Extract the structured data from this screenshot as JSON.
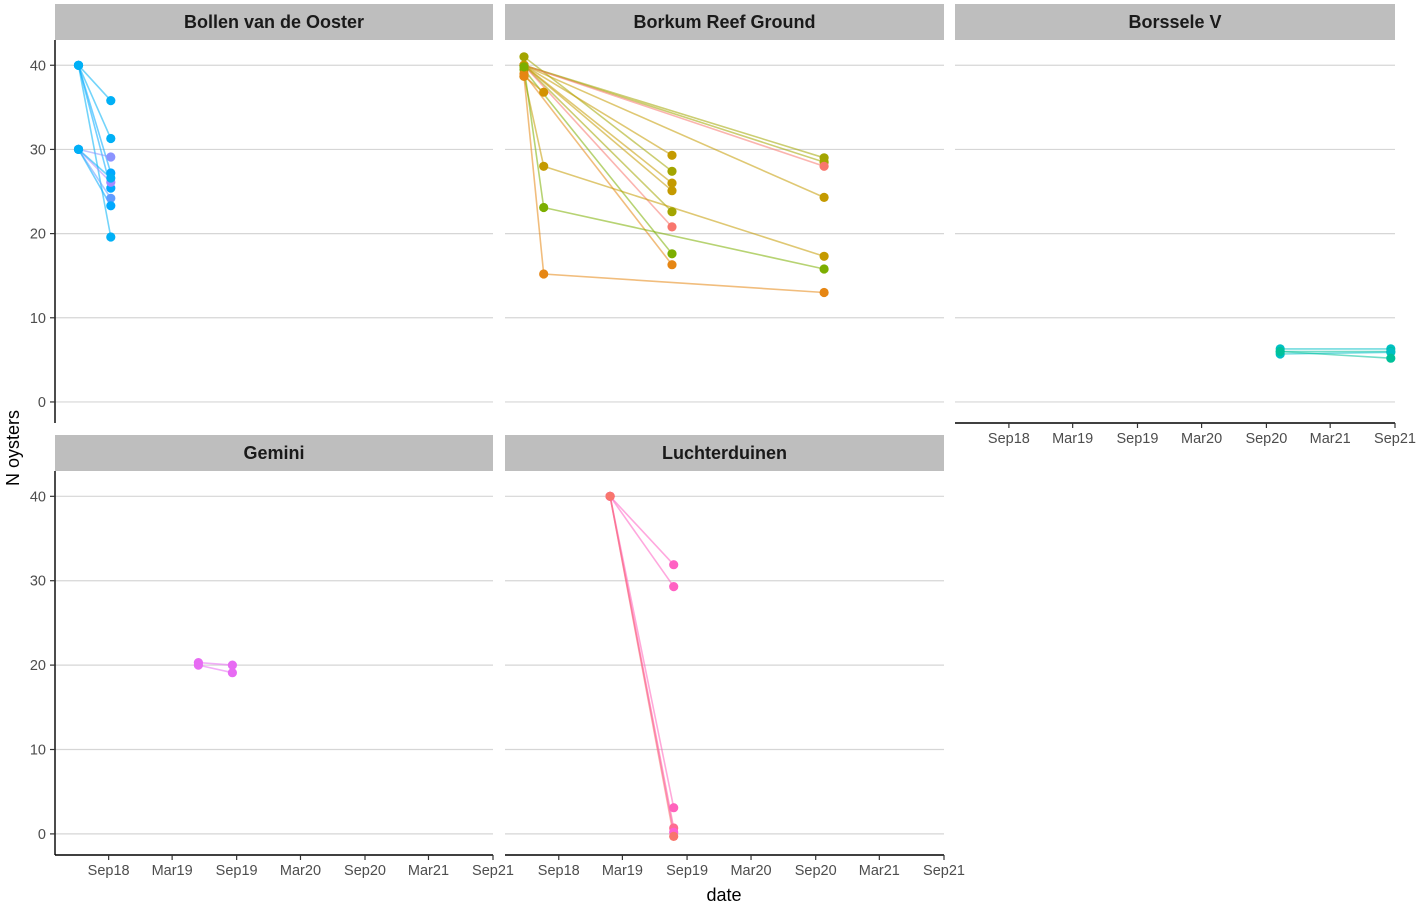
{
  "chart_data": {
    "type": "scatter",
    "xlabel": "date",
    "ylabel": "N oysters",
    "y_ticks": [
      0,
      10,
      20,
      30,
      40
    ],
    "x_ticks": [
      "Sep18",
      "Mar19",
      "Sep19",
      "Mar20",
      "Sep20",
      "Mar21",
      "Sep21"
    ],
    "ylim": [
      -2.5,
      43
    ],
    "grid": "horizontal major",
    "panels": [
      {
        "title": "Bollen van de Ooster",
        "series": [
          {
            "color": "#00b0f6",
            "points": [
              [
                "2018-06-07",
                40
              ],
              [
                "2018-09-07",
                35.8
              ]
            ]
          },
          {
            "color": "#00b0f6",
            "points": [
              [
                "2018-06-07",
                40
              ],
              [
                "2018-09-07",
                31.3
              ]
            ]
          },
          {
            "color": "#00a9ff",
            "points": [
              [
                "2018-06-07",
                40
              ],
              [
                "2018-09-07",
                27.2
              ]
            ]
          },
          {
            "color": "#00a9ff",
            "points": [
              [
                "2018-06-07",
                40
              ],
              [
                "2018-09-07",
                25.4
              ]
            ]
          },
          {
            "color": "#00b0f6",
            "points": [
              [
                "2018-06-07",
                40
              ],
              [
                "2018-09-07",
                19.6
              ]
            ]
          },
          {
            "color": "#8b93ff",
            "points": [
              [
                "2018-06-07",
                30
              ],
              [
                "2018-09-07",
                29.1
              ]
            ]
          },
          {
            "color": "#a58aff",
            "points": [
              [
                "2018-06-07",
                30
              ],
              [
                "2018-09-07",
                26.1
              ]
            ]
          },
          {
            "color": "#619cff",
            "points": [
              [
                "2018-06-07",
                30
              ],
              [
                "2018-09-07",
                24.2
              ]
            ]
          },
          {
            "color": "#00a9ff",
            "points": [
              [
                "2018-06-07",
                30
              ],
              [
                "2018-09-07",
                23.3
              ]
            ]
          },
          {
            "color": "#00b0f6",
            "points": [
              [
                "2018-06-07",
                30
              ],
              [
                "2018-09-07",
                26.6
              ]
            ]
          }
        ]
      },
      {
        "title": "Borkum Reef Ground",
        "series": [
          {
            "color": "#a3a500",
            "points": [
              [
                "2018-05-25",
                41
              ],
              [
                "2019-07-20",
                27.4
              ]
            ]
          },
          {
            "color": "#c49a00",
            "points": [
              [
                "2018-05-25",
                40
              ],
              [
                "2019-07-20",
                29.3
              ]
            ]
          },
          {
            "color": "#c49a00",
            "points": [
              [
                "2018-05-25",
                40
              ],
              [
                "2019-07-20",
                26.0
              ]
            ]
          },
          {
            "color": "#c49a00",
            "points": [
              [
                "2018-05-25",
                40
              ],
              [
                "2019-07-20",
                25.1
              ]
            ]
          },
          {
            "color": "#a3a500",
            "points": [
              [
                "2018-05-25",
                40
              ],
              [
                "2019-07-20",
                22.6
              ]
            ]
          },
          {
            "color": "#f8766d",
            "points": [
              [
                "2018-05-25",
                40
              ],
              [
                "2019-07-20",
                20.8
              ]
            ]
          },
          {
            "color": "#7cae00",
            "points": [
              [
                "2018-05-25",
                39.5
              ],
              [
                "2019-07-20",
                17.6
              ]
            ]
          },
          {
            "color": "#e68613",
            "points": [
              [
                "2018-05-25",
                39
              ],
              [
                "2019-07-20",
                16.3
              ]
            ]
          },
          {
            "color": "#a3a500",
            "points": [
              [
                "2018-05-25",
                40
              ],
              [
                "2020-09-25",
                29.0
              ]
            ]
          },
          {
            "color": "#a3a500",
            "points": [
              [
                "2018-05-25",
                40
              ],
              [
                "2020-09-25",
                28.5
              ]
            ]
          },
          {
            "color": "#f8766d",
            "points": [
              [
                "2018-05-25",
                40
              ],
              [
                "2020-09-25",
                28.0
              ]
            ]
          },
          {
            "color": "#c49a00",
            "points": [
              [
                "2018-05-25",
                40
              ],
              [
                "2020-09-25",
                24.3
              ]
            ]
          },
          {
            "color": "#d39200",
            "points": [
              [
                "2018-05-25",
                38.7
              ],
              [
                "2018-07-20",
                36.8
              ]
            ]
          },
          {
            "color": "#c49a00",
            "points": [
              [
                "2018-05-25",
                38.7
              ],
              [
                "2018-07-20",
                28.0
              ],
              [
                "2020-09-25",
                17.3
              ]
            ]
          },
          {
            "color": "#7cae00",
            "points": [
              [
                "2018-05-25",
                39.8
              ],
              [
                "2018-07-20",
                23.1
              ],
              [
                "2020-09-25",
                15.8
              ]
            ]
          },
          {
            "color": "#e68613",
            "points": [
              [
                "2018-05-25",
                38.7
              ],
              [
                "2018-07-20",
                15.2
              ],
              [
                "2020-09-25",
                13.0
              ]
            ]
          }
        ]
      },
      {
        "title": "Borssele V",
        "series": [
          {
            "color": "#00bfc4",
            "points": [
              [
                "2020-10-10",
                6.3
              ],
              [
                "2021-08-20",
                6.3
              ]
            ]
          },
          {
            "color": "#00c19a",
            "points": [
              [
                "2020-10-10",
                6.0
              ],
              [
                "2021-08-20",
                6.0
              ]
            ]
          },
          {
            "color": "#00bfc4",
            "points": [
              [
                "2020-10-10",
                5.7
              ],
              [
                "2021-08-20",
                5.9
              ]
            ]
          },
          {
            "color": "#00c19a",
            "points": [
              [
                "2020-10-10",
                6.0
              ],
              [
                "2021-08-20",
                5.2
              ]
            ]
          }
        ]
      },
      {
        "title": "Gemini",
        "series": [
          {
            "color": "#e76bf3",
            "points": [
              [
                "2019-05-15",
                20.3
              ],
              [
                "2019-08-20",
                20.0
              ]
            ]
          },
          {
            "color": "#e76bf3",
            "points": [
              [
                "2019-05-15",
                20.0
              ],
              [
                "2019-08-20",
                19.1
              ]
            ]
          }
        ]
      },
      {
        "title": "Luchterduinen",
        "series": [
          {
            "color": "#ff61c3",
            "points": [
              [
                "2019-01-25",
                40
              ],
              [
                "2019-07-25",
                31.9
              ]
            ]
          },
          {
            "color": "#ff61c3",
            "points": [
              [
                "2019-01-25",
                40
              ],
              [
                "2019-07-25",
                29.3
              ]
            ]
          },
          {
            "color": "#ff62bc",
            "points": [
              [
                "2019-01-25",
                40
              ],
              [
                "2019-07-25",
                3.1
              ]
            ]
          },
          {
            "color": "#ff6c91",
            "points": [
              [
                "2019-01-25",
                40
              ],
              [
                "2019-07-25",
                0.7
              ]
            ]
          },
          {
            "color": "#fd61d1",
            "points": [
              [
                "2019-01-25",
                40
              ],
              [
                "2019-07-25",
                0.2
              ]
            ]
          },
          {
            "color": "#f8766d",
            "points": [
              [
                "2019-01-25",
                40
              ],
              [
                "2019-07-25",
                -0.3
              ]
            ]
          }
        ]
      }
    ]
  }
}
